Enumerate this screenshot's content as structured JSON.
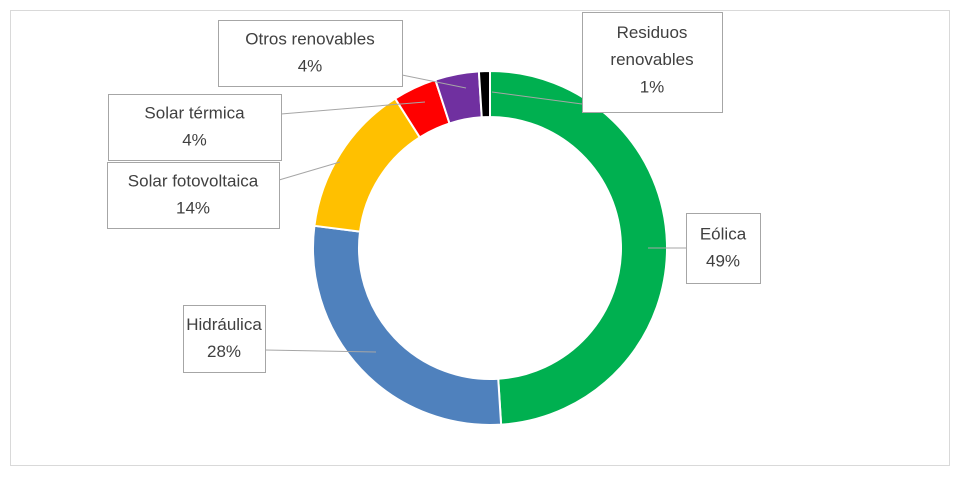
{
  "chart_data": {
    "type": "pie",
    "donut": true,
    "categories": [
      "Eólica",
      "Hidráulica",
      "Solar fotovoltaica",
      "Solar térmica",
      "Otros renovables",
      "Residuos renovables"
    ],
    "values": [
      49,
      28,
      14,
      4,
      4,
      1
    ],
    "value_labels": [
      "49%",
      "28%",
      "14%",
      "4%",
      "4%",
      "1%"
    ],
    "colors": [
      "#00b050",
      "#4f81bd",
      "#ffc000",
      "#ff0000",
      "#7030a0",
      "#000000"
    ]
  }
}
